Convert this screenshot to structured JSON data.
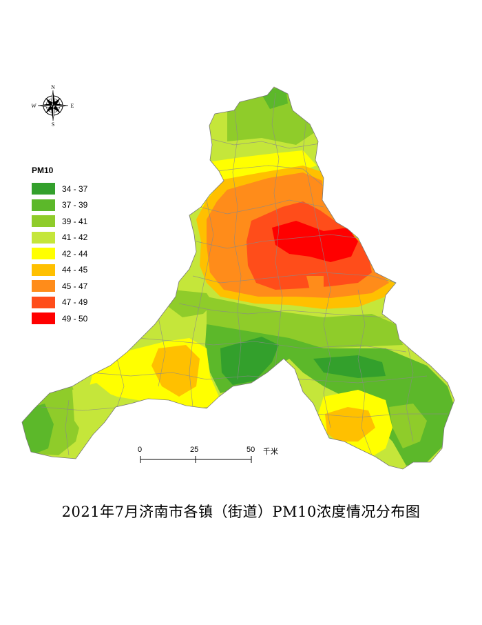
{
  "title": "2021年7月济南市各镇（街道）PM10浓度情况分布图",
  "compass": {
    "north": "N",
    "south": "S",
    "east": "E",
    "west": "W"
  },
  "legend": {
    "title": "PM10",
    "items": [
      {
        "label": "34 - 37",
        "color": "#33a02c"
      },
      {
        "label": "37 - 39",
        "color": "#5cb82a"
      },
      {
        "label": "39 - 41",
        "color": "#8fcc2a"
      },
      {
        "label": "41 - 42",
        "color": "#c5e63a"
      },
      {
        "label": "42 - 44",
        "color": "#ffff00"
      },
      {
        "label": "44 - 45",
        "color": "#ffc000"
      },
      {
        "label": "45 - 47",
        "color": "#ff8c1a"
      },
      {
        "label": "47 - 49",
        "color": "#ff4d1a"
      },
      {
        "label": "49 - 50",
        "color": "#ff0000"
      }
    ]
  },
  "scale_bar": {
    "ticks": [
      "0",
      "25",
      "50"
    ],
    "unit": "千米"
  }
}
